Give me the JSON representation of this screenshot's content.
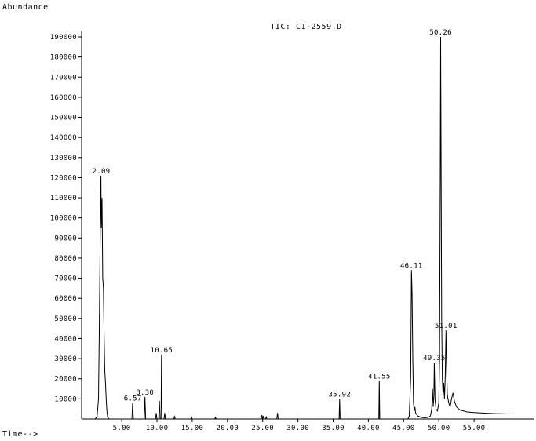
{
  "chart_data": {
    "type": "line",
    "title": "TIC: C1-2559.D",
    "ylabel": "Abundance",
    "xlabel": "Time-->",
    "xlim": [
      0,
      60
    ],
    "ylim": [
      0,
      195000
    ],
    "x_ticks": [
      5,
      10,
      15,
      20,
      25,
      30,
      35,
      40,
      45,
      50,
      55
    ],
    "x_tick_labels": [
      "5.00",
      "10.00",
      "15.00",
      "20.00",
      "25.00",
      "30.00",
      "35.00",
      "40.00",
      "45.00",
      "50.00",
      "55.00"
    ],
    "y_ticks": [
      10000,
      20000,
      30000,
      40000,
      50000,
      60000,
      70000,
      80000,
      90000,
      100000,
      110000,
      120000,
      130000,
      140000,
      150000,
      160000,
      170000,
      180000,
      190000
    ],
    "y_tick_labels": [
      "10000",
      "20000",
      "30000",
      "40000",
      "50000",
      "60000",
      "70000",
      "80000",
      "90000",
      "100000",
      "110000",
      "120000",
      "130000",
      "140000",
      "150000",
      "160000",
      "170000",
      "180000",
      "190000"
    ],
    "peaks": [
      {
        "rt": 2.09,
        "label": "2.09",
        "height": 121000
      },
      {
        "rt": 6.57,
        "label": "6.57",
        "height": 8000
      },
      {
        "rt": 8.3,
        "label": "8.30",
        "height": 11000
      },
      {
        "rt": 10.65,
        "label": "10.65",
        "height": 32000
      },
      {
        "rt": 35.92,
        "label": "35.92",
        "height": 10000
      },
      {
        "rt": 41.55,
        "label": "41.55",
        "height": 19000
      },
      {
        "rt": 46.11,
        "label": "46.11",
        "height": 74000
      },
      {
        "rt": 49.35,
        "label": "49.35",
        "height": 28000
      },
      {
        "rt": 50.26,
        "label": "50.26",
        "height": 190000
      },
      {
        "rt": 51.01,
        "label": "51.01",
        "height": 44000
      }
    ],
    "trace": [
      [
        0.0,
        0
      ],
      [
        1.2,
        0
      ],
      [
        1.5,
        1000
      ],
      [
        1.7,
        10000
      ],
      [
        1.8,
        40000
      ],
      [
        1.9,
        75000
      ],
      [
        2.0,
        112000
      ],
      [
        2.05,
        121000
      ],
      [
        2.1,
        95000
      ],
      [
        2.2,
        110000
      ],
      [
        2.3,
        70000
      ],
      [
        2.4,
        65000
      ],
      [
        2.5,
        40000
      ],
      [
        2.6,
        24000
      ],
      [
        2.7,
        18000
      ],
      [
        2.8,
        10000
      ],
      [
        2.9,
        4000
      ],
      [
        3.0,
        1000
      ],
      [
        3.2,
        0
      ],
      [
        6.45,
        0
      ],
      [
        6.55,
        8000
      ],
      [
        6.65,
        0
      ],
      [
        8.2,
        0
      ],
      [
        8.3,
        11000
      ],
      [
        8.4,
        0
      ],
      [
        9.8,
        0
      ],
      [
        9.9,
        3000
      ],
      [
        10.0,
        0
      ],
      [
        10.25,
        0
      ],
      [
        10.35,
        9000
      ],
      [
        10.45,
        0
      ],
      [
        10.58,
        0
      ],
      [
        10.65,
        32000
      ],
      [
        10.72,
        0
      ],
      [
        11.0,
        0
      ],
      [
        11.1,
        3000
      ],
      [
        11.2,
        0
      ],
      [
        12.4,
        0
      ],
      [
        12.5,
        1500
      ],
      [
        12.6,
        0
      ],
      [
        14.8,
        0
      ],
      [
        14.9,
        1000
      ],
      [
        15.0,
        0
      ],
      [
        18.2,
        0
      ],
      [
        18.3,
        800
      ],
      [
        18.4,
        0
      ],
      [
        24.8,
        0
      ],
      [
        24.9,
        2000
      ],
      [
        25.0,
        0
      ],
      [
        25.1,
        1500
      ],
      [
        25.2,
        0
      ],
      [
        25.4,
        0
      ],
      [
        25.5,
        1000
      ],
      [
        25.6,
        0
      ],
      [
        27.0,
        0
      ],
      [
        27.1,
        3000
      ],
      [
        27.2,
        0
      ],
      [
        35.85,
        0
      ],
      [
        35.92,
        10000
      ],
      [
        35.99,
        0
      ],
      [
        41.48,
        0
      ],
      [
        41.55,
        19000
      ],
      [
        41.62,
        0
      ],
      [
        45.6,
        0
      ],
      [
        45.8,
        1500
      ],
      [
        46.0,
        20000
      ],
      [
        46.11,
        74000
      ],
      [
        46.2,
        62000
      ],
      [
        46.3,
        30000
      ],
      [
        46.4,
        8000
      ],
      [
        46.5,
        4000
      ],
      [
        46.6,
        6000
      ],
      [
        46.7,
        3000
      ],
      [
        47.0,
        1500
      ],
      [
        47.5,
        800
      ],
      [
        48.0,
        600
      ],
      [
        48.5,
        800
      ],
      [
        48.8,
        1500
      ],
      [
        49.0,
        5000
      ],
      [
        49.1,
        15000
      ],
      [
        49.2,
        6000
      ],
      [
        49.3,
        12000
      ],
      [
        49.35,
        28000
      ],
      [
        49.45,
        10000
      ],
      [
        49.6,
        5000
      ],
      [
        49.8,
        4000
      ],
      [
        50.0,
        8000
      ],
      [
        50.1,
        30000
      ],
      [
        50.2,
        120000
      ],
      [
        50.26,
        190000
      ],
      [
        50.3,
        148000
      ],
      [
        50.4,
        50000
      ],
      [
        50.5,
        20000
      ],
      [
        50.6,
        12000
      ],
      [
        50.7,
        18000
      ],
      [
        50.8,
        10000
      ],
      [
        50.9,
        20000
      ],
      [
        51.01,
        44000
      ],
      [
        51.1,
        25000
      ],
      [
        51.2,
        12000
      ],
      [
        51.4,
        8000
      ],
      [
        51.6,
        6000
      ],
      [
        51.8,
        10000
      ],
      [
        52.0,
        13000
      ],
      [
        52.2,
        9000
      ],
      [
        52.5,
        6000
      ],
      [
        53.0,
        4500
      ],
      [
        54.0,
        3500
      ],
      [
        55.0,
        3200
      ],
      [
        56.0,
        3000
      ],
      [
        57.0,
        2800
      ],
      [
        58.0,
        2700
      ],
      [
        59.0,
        2600
      ],
      [
        60.0,
        2500
      ]
    ]
  }
}
